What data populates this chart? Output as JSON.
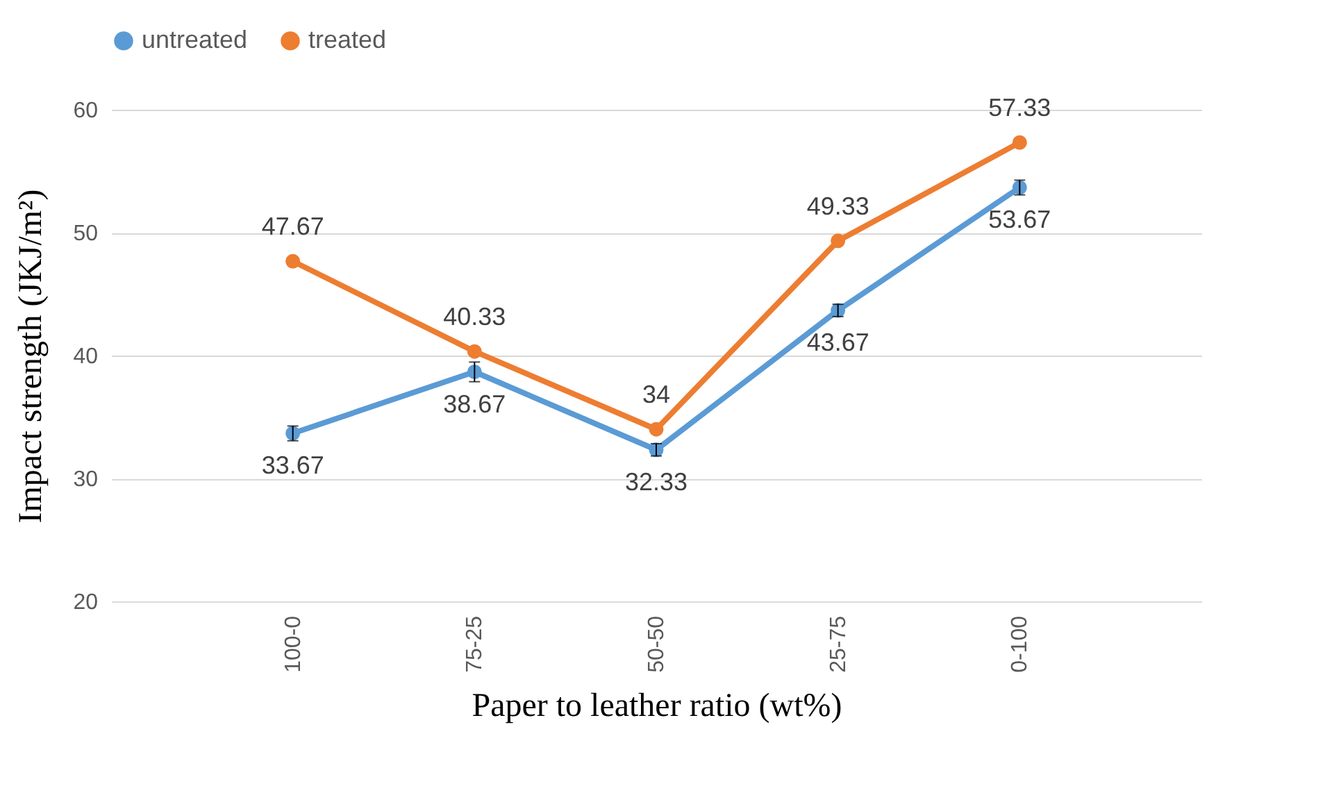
{
  "chart_data": {
    "type": "line",
    "xlabel": "Paper to leather ratio (wt%)",
    "ylabel": "Impact strength (JKJ/m²)",
    "categories": [
      "100-0",
      "75-25",
      "50-50",
      "25-75",
      "0-100"
    ],
    "series": [
      {
        "name": "untreated",
        "color": "#5b9bd5",
        "values": [
          33.67,
          38.67,
          32.33,
          43.67,
          53.67
        ],
        "errors": [
          0.6,
          0.8,
          0.5,
          0.5,
          0.6
        ]
      },
      {
        "name": "treated",
        "color": "#ed7d31",
        "values": [
          47.67,
          40.33,
          34,
          49.33,
          57.33
        ]
      }
    ],
    "ylim": [
      20,
      60
    ],
    "yticks": [
      20,
      30,
      40,
      50,
      60
    ],
    "grid": "y",
    "legend": "top",
    "marker": "circle",
    "line_style": "solid",
    "data_labels": true
  }
}
